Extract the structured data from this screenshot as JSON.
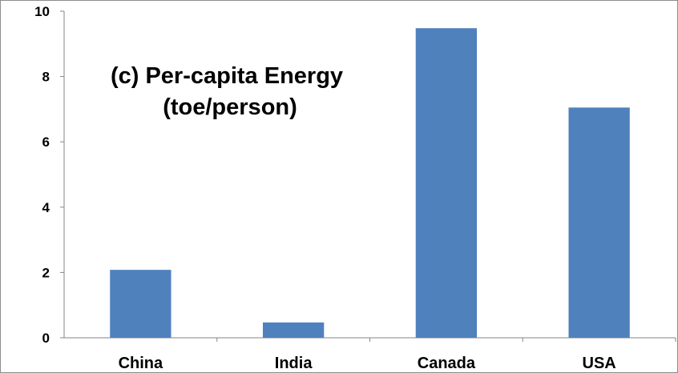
{
  "chart_data": {
    "type": "bar",
    "title_lines": [
      "(c) Per-capita Energy",
      "(toe/person)"
    ],
    "categories": [
      "China",
      "India",
      "Canada",
      "USA"
    ],
    "values": [
      2.08,
      0.47,
      9.48,
      7.05
    ],
    "ylim": [
      0,
      10
    ],
    "yticks": [
      "0",
      "2",
      "4",
      "6",
      "8",
      "10"
    ],
    "grid": false,
    "legend": "none",
    "bar_color": "#4f81bd",
    "axis_color": "#868686"
  }
}
